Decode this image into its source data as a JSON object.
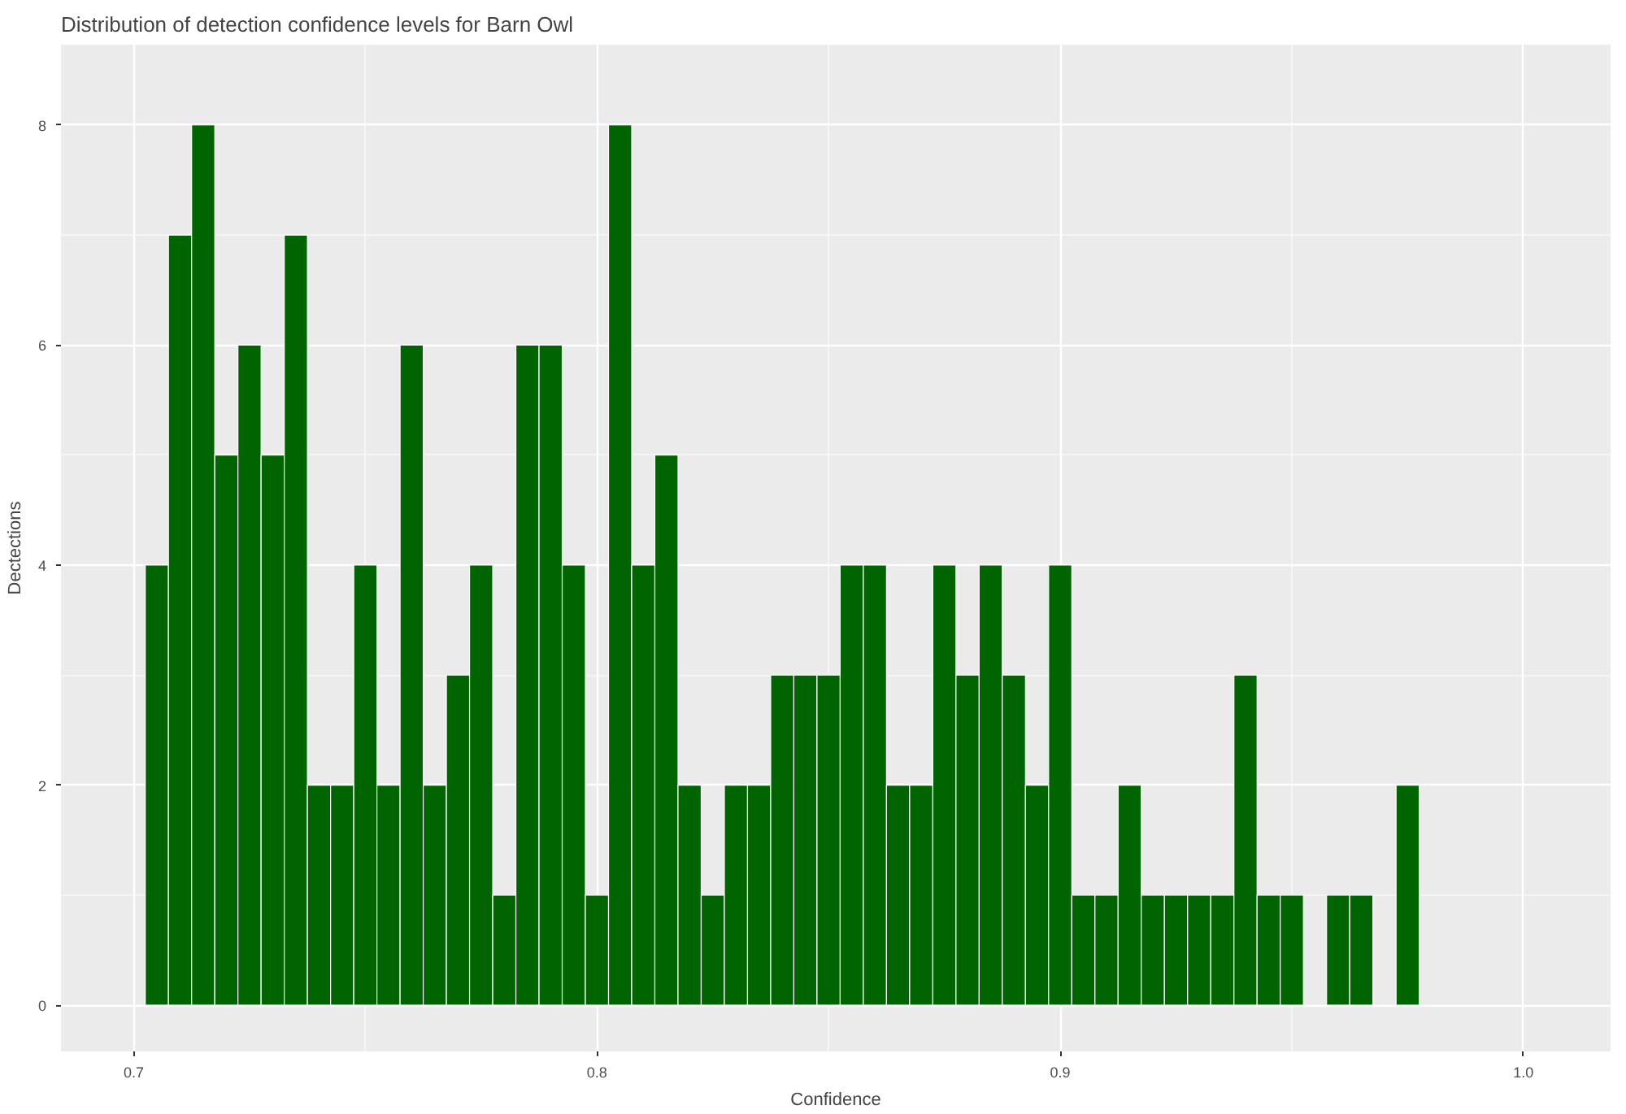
{
  "chart_data": {
    "type": "histogram",
    "title": "Distribution of detection confidence levels for Barn Owl",
    "xlabel": "Confidence",
    "ylabel": "Dectections",
    "bins": [
      0.7025,
      0.7075,
      0.7125,
      0.7175,
      0.7225,
      0.7275,
      0.7325,
      0.7375,
      0.7425,
      0.7475,
      0.7525,
      0.7575,
      0.7625,
      0.7675,
      0.7725,
      0.7775,
      0.7825,
      0.7875,
      0.7925,
      0.7975,
      0.8025,
      0.8075,
      0.8125,
      0.8175,
      0.8225,
      0.8275,
      0.8325,
      0.8375,
      0.8425,
      0.8475,
      0.8525,
      0.8575,
      0.8625,
      0.8675,
      0.8725,
      0.8775,
      0.8825,
      0.8875,
      0.8925,
      0.8975,
      0.9025,
      0.9075,
      0.9125,
      0.9175,
      0.9225,
      0.9275,
      0.9325,
      0.9375,
      0.9425,
      0.9475,
      0.9525,
      0.9575,
      0.9625,
      0.9675,
      0.9725,
      0.9775
    ],
    "values": [
      4,
      7,
      8,
      5,
      6,
      5,
      7,
      2,
      2,
      4,
      2,
      6,
      2,
      3,
      4,
      1,
      6,
      6,
      4,
      1,
      8,
      4,
      5,
      2,
      1,
      2,
      2,
      3,
      3,
      3,
      4,
      4,
      2,
      2,
      4,
      3,
      4,
      3,
      2,
      4,
      1,
      1,
      2,
      1,
      1,
      1,
      1,
      3,
      1,
      1,
      0,
      1,
      1,
      0,
      2
    ],
    "color": "#006400",
    "xlim": [
      0.6843,
      1.0188
    ],
    "ylim": [
      -0.42,
      8.73
    ],
    "xticks": [
      0.7,
      0.8,
      0.9,
      {
        "value": 1,
        "label": "1.0"
      }
    ],
    "yticks": [
      0,
      2,
      4,
      6,
      8
    ],
    "grid": true
  }
}
